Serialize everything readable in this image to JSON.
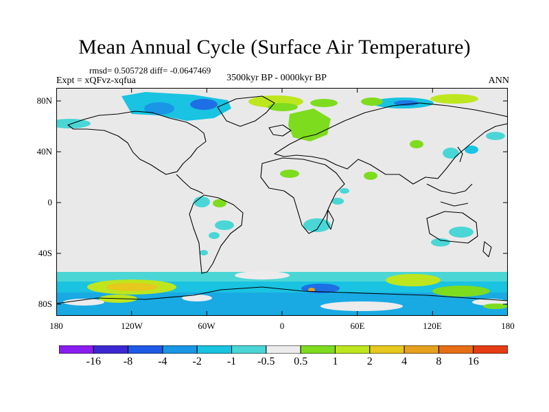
{
  "title": "Mean Annual Cycle (Surface Air Temperature)",
  "stats": "rmsd= 0.505728 diff= -0.0647469",
  "experiment": "Expt = xQFvz-xqfua",
  "period": "3500kyr BP - 0000kyr BP",
  "season": "ANN",
  "y_ticks": [
    "80N",
    "40N",
    "0",
    "40S",
    "80S"
  ],
  "x_ticks": [
    "180",
    "120W",
    "60W",
    "0",
    "60E",
    "120E",
    "180"
  ],
  "colorbar": {
    "labels": [
      "-16",
      "-8",
      "-4",
      "-2",
      "-1",
      "-0.5",
      "0.5",
      "1",
      "2",
      "4",
      "8",
      "16"
    ],
    "colors": [
      "#8a1cf0",
      "#3c28d2",
      "#1e5ae6",
      "#1996e6",
      "#19c3e1",
      "#4bd6d6",
      "#ececec",
      "#7edc1e",
      "#bee61e",
      "#e6c81e",
      "#e6a01e",
      "#e66e14",
      "#e63c14"
    ]
  }
}
